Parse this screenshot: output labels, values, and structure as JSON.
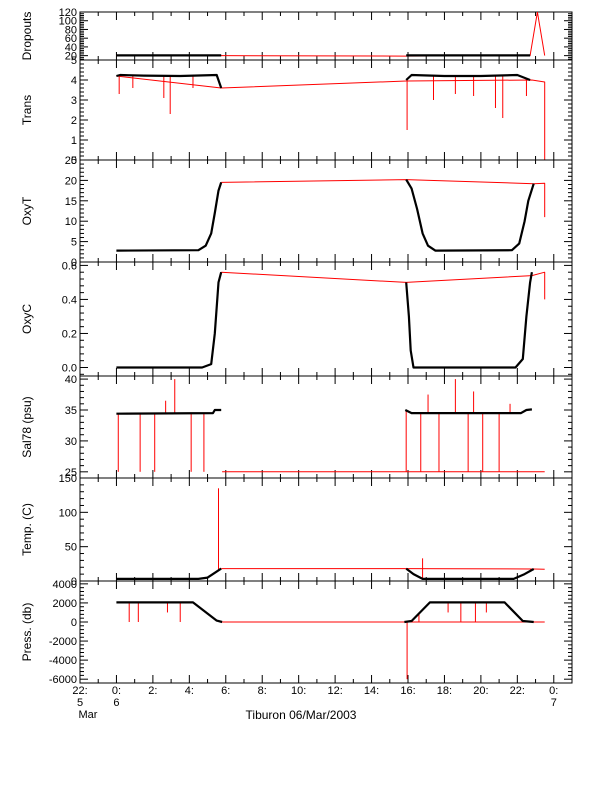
{
  "chart_data": {
    "type": "line",
    "xlabel": "Tiburon 06/Mar/2003",
    "x_unit": "hours since 06/Mar/2003 00:00",
    "xlim": [
      -2,
      25
    ],
    "x_ticks": [
      {
        "x": -2,
        "top": "22:",
        "mid": "5",
        "bottom": "Mar"
      },
      {
        "x": 0,
        "top": "0:",
        "mid": "6",
        "bottom": ""
      },
      {
        "x": 2,
        "top": "2:",
        "mid": "",
        "bottom": ""
      },
      {
        "x": 4,
        "top": "4:",
        "mid": "",
        "bottom": ""
      },
      {
        "x": 6,
        "top": "6:",
        "mid": "",
        "bottom": ""
      },
      {
        "x": 8,
        "top": "8:",
        "mid": "",
        "bottom": ""
      },
      {
        "x": 10,
        "top": "10:",
        "mid": "",
        "bottom": ""
      },
      {
        "x": 12,
        "top": "12:",
        "mid": "",
        "bottom": ""
      },
      {
        "x": 14,
        "top": "14:",
        "mid": "",
        "bottom": ""
      },
      {
        "x": 16,
        "top": "16:",
        "mid": "",
        "bottom": ""
      },
      {
        "x": 18,
        "top": "18:",
        "mid": "",
        "bottom": ""
      },
      {
        "x": 20,
        "top": "20:",
        "mid": "",
        "bottom": ""
      },
      {
        "x": 22,
        "top": "22:",
        "mid": "",
        "bottom": ""
      },
      {
        "x": 24,
        "top": "0:",
        "mid": "7",
        "bottom": ""
      }
    ],
    "colors": {
      "raw": "#ff0000",
      "smoothed": "#000000",
      "axis": "#000000"
    },
    "panels": [
      {
        "ylabel": "Dropouts",
        "ylim": [
          10,
          120
        ],
        "yticks": [
          20,
          40,
          60,
          80,
          100,
          120
        ],
        "ytick_labels": [
          "20",
          "40",
          "60",
          "80",
          "100",
          "120"
        ],
        "series": [
          {
            "role": "raw",
            "x": [
              0,
              5.75,
              15.9,
              22.7,
              23.1,
              23.5
            ],
            "y": [
              20,
              20,
              19,
              20,
              120,
              20
            ]
          },
          {
            "role": "smoothed",
            "x": [
              0,
              5.75
            ],
            "y": [
              20.5,
              20.5
            ]
          },
          {
            "role": "smoothed",
            "x": [
              15.9,
              22.7
            ],
            "y": [
              20.5,
              20.5
            ]
          }
        ]
      },
      {
        "ylabel": "Trans",
        "ylim": [
          0,
          5
        ],
        "yticks": [
          0,
          1,
          2,
          3,
          4,
          5
        ],
        "ytick_labels": [
          "0",
          "1",
          "2",
          "3",
          "4",
          "5"
        ],
        "series": [
          {
            "role": "raw",
            "x": [
              0,
              5.75,
              15.9,
              22.8,
              23.5,
              23.5
            ],
            "y": [
              4.2,
              3.6,
              3.95,
              4.0,
              3.9,
              0
            ]
          },
          {
            "role": "smoothed",
            "x": [
              0,
              0.2,
              1.5,
              3.5,
              5.5,
              5.75
            ],
            "y": [
              4.2,
              4.25,
              4.22,
              4.2,
              4.25,
              3.6
            ]
          },
          {
            "role": "smoothed",
            "x": [
              15.9,
              16.2,
              18,
              20,
              22,
              22.7
            ],
            "y": [
              4.0,
              4.25,
              4.2,
              4.2,
              4.25,
              4.0
            ]
          }
        ],
        "spikes": [
          {
            "x": 0.15,
            "y": 3.3
          },
          {
            "x": 0.9,
            "y": 3.6
          },
          {
            "x": 2.6,
            "y": 3.1
          },
          {
            "x": 2.95,
            "y": 2.3
          },
          {
            "x": 4.2,
            "y": 3.6
          },
          {
            "x": 15.95,
            "y": 1.5
          },
          {
            "x": 17.4,
            "y": 3.0
          },
          {
            "x": 18.6,
            "y": 3.3
          },
          {
            "x": 19.6,
            "y": 3.2
          },
          {
            "x": 20.8,
            "y": 2.6
          },
          {
            "x": 21.2,
            "y": 2.1
          },
          {
            "x": 22.5,
            "y": 3.2
          }
        ]
      },
      {
        "ylabel": "OxyT",
        "ylim": [
          0,
          25
        ],
        "yticks": [
          0,
          5,
          10,
          15,
          20,
          25
        ],
        "ytick_labels": [
          "0",
          "5",
          "10",
          "15",
          "20",
          "25"
        ],
        "series": [
          {
            "role": "raw",
            "x": [
              5.75,
              15.9,
              22.9,
              23.5,
              23.5
            ],
            "y": [
              19.5,
              20.2,
              19.2,
              19.3,
              11
            ]
          },
          {
            "role": "smoothed",
            "x": [
              0,
              4.5,
              4.9,
              5.2,
              5.4,
              5.6,
              5.75
            ],
            "y": [
              2.8,
              2.9,
              4,
              7,
              12,
              17.5,
              19.5
            ]
          },
          {
            "role": "smoothed",
            "x": [
              15.9,
              16.2,
              16.5,
              16.8,
              17.1,
              17.5,
              21.7,
              22.1,
              22.4,
              22.6,
              22.9
            ],
            "y": [
              20.2,
              18,
              13,
              7,
              4,
              2.8,
              2.9,
              4.5,
              10,
              15,
              19.2
            ]
          }
        ]
      },
      {
        "ylabel": "OxyC",
        "ylim": [
          -0.05,
          0.62
        ],
        "yticks": [
          0.0,
          0.2,
          0.4,
          0.6
        ],
        "ytick_labels": [
          "0.0",
          "0.2",
          "0.4",
          "0.6"
        ],
        "series": [
          {
            "role": "raw",
            "x": [
              5.75,
              15.9,
              22.8,
              23.5,
              23.5
            ],
            "y": [
              0.56,
              0.5,
              0.54,
              0.56,
              0.4
            ]
          },
          {
            "role": "smoothed",
            "x": [
              0,
              4.7,
              5.2,
              5.4,
              5.6,
              5.75
            ],
            "y": [
              0.0,
              0.0,
              0.02,
              0.2,
              0.5,
              0.56
            ]
          },
          {
            "role": "smoothed",
            "x": [
              15.9,
              16.05,
              16.15,
              16.3,
              16.7,
              21.9,
              22.3,
              22.5,
              22.7,
              22.8
            ],
            "y": [
              0.5,
              0.3,
              0.1,
              0.0,
              0.0,
              0.0,
              0.05,
              0.3,
              0.5,
              0.56
            ]
          }
        ]
      },
      {
        "ylabel": "Sal78 (psu)",
        "ylim": [
          24,
          40.5
        ],
        "yticks": [
          25,
          30,
          35,
          40
        ],
        "ytick_labels": [
          "25",
          "30",
          "35",
          "40"
        ],
        "series": [
          {
            "role": "raw",
            "x": [
              5.8,
              15.85,
              22.8,
              23.5
            ],
            "y": [
              25,
              25,
              25,
              25
            ]
          },
          {
            "role": "smoothed",
            "x": [
              0,
              5.3,
              5.4,
              5.75
            ],
            "y": [
              34.4,
              34.5,
              35.0,
              35.0
            ]
          },
          {
            "role": "smoothed",
            "x": [
              15.85,
              16.2,
              22.2,
              22.5,
              22.8
            ],
            "y": [
              35.0,
              34.5,
              34.5,
              35.0,
              35.1
            ]
          }
        ],
        "spikes": [
          {
            "x": 0.1,
            "y": 25
          },
          {
            "x": 1.3,
            "y": 25
          },
          {
            "x": 2.1,
            "y": 25
          },
          {
            "x": 2.7,
            "y": 36.5
          },
          {
            "x": 3.2,
            "y": 40
          },
          {
            "x": 4.1,
            "y": 25
          },
          {
            "x": 4.8,
            "y": 25
          },
          {
            "x": 15.9,
            "y": 25
          },
          {
            "x": 16.7,
            "y": 25
          },
          {
            "x": 17.1,
            "y": 37.5
          },
          {
            "x": 17.7,
            "y": 25
          },
          {
            "x": 18.6,
            "y": 40
          },
          {
            "x": 19.3,
            "y": 25
          },
          {
            "x": 19.6,
            "y": 38
          },
          {
            "x": 20.1,
            "y": 25
          },
          {
            "x": 21.0,
            "y": 25
          },
          {
            "x": 21.6,
            "y": 36
          }
        ]
      },
      {
        "ylabel": "Temp. (C)",
        "ylim": [
          0,
          150
        ],
        "yticks": [
          0,
          50,
          100,
          150
        ],
        "ytick_labels": [
          "0",
          "50",
          "100",
          "150"
        ],
        "series": [
          {
            "role": "raw",
            "x": [
              5.75,
              15.9,
              22.9,
              23.5
            ],
            "y": [
              18,
              18,
              17.5,
              17
            ]
          },
          {
            "role": "smoothed",
            "x": [
              0,
              4.5,
              5.0,
              5.4,
              5.75
            ],
            "y": [
              3,
              3,
              5,
              12,
              18
            ]
          },
          {
            "role": "smoothed",
            "x": [
              15.9,
              16.3,
              16.8,
              21.8,
              22.4,
              22.9
            ],
            "y": [
              18,
              10,
              3,
              3,
              10,
              17.5
            ]
          }
        ],
        "spikes": [
          {
            "x": 5.6,
            "y": 135
          },
          {
            "x": 16.8,
            "y": 33
          }
        ]
      },
      {
        "ylabel": "Press. (db)",
        "ylim": [
          -6400,
          4300
        ],
        "yticks": [
          -6000,
          -4000,
          -2000,
          0,
          2000,
          4000
        ],
        "ytick_labels": [
          "-6000",
          "-4000",
          "-2000",
          "0",
          "2000",
          "4000"
        ],
        "series": [
          {
            "role": "raw",
            "x": [
              5.8,
              15.8,
              22.9,
              23.5
            ],
            "y": [
              0,
              0,
              0,
              0
            ]
          },
          {
            "role": "smoothed",
            "x": [
              0,
              4.2,
              5.5,
              5.8
            ],
            "y": [
              2050,
              2050,
              150,
              0
            ]
          },
          {
            "role": "smoothed",
            "x": [
              15.8,
              16.2,
              17.2,
              21.3,
              22.3,
              22.9
            ],
            "y": [
              0,
              100,
              2050,
              2050,
              100,
              0
            ]
          }
        ],
        "spikes": [
          {
            "x": 0.7,
            "y": 0
          },
          {
            "x": 1.2,
            "y": 0
          },
          {
            "x": 2.8,
            "y": 1000
          },
          {
            "x": 3.5,
            "y": 0
          },
          {
            "x": 15.95,
            "y": -6000
          },
          {
            "x": 16.6,
            "y": 0
          },
          {
            "x": 18.2,
            "y": 1000
          },
          {
            "x": 18.9,
            "y": 0
          },
          {
            "x": 19.7,
            "y": 0
          },
          {
            "x": 20.3,
            "y": 1000
          }
        ]
      }
    ]
  }
}
